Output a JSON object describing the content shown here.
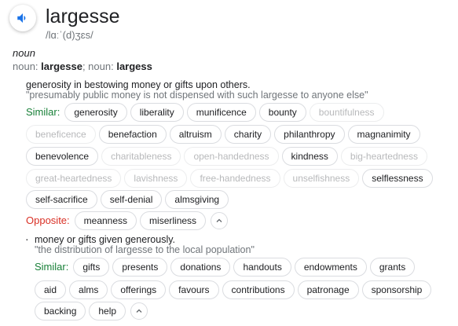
{
  "entry": {
    "word": "largesse",
    "pronunciation": "/lɑːˈ(d)ʒɛs/",
    "part_of_speech": "noun",
    "forms_prefix": "noun:",
    "form1": "largesse",
    "forms_sep": "; noun:",
    "form2": "largess"
  },
  "sense1": {
    "definition": "generosity in bestowing money or gifts upon others.",
    "example": "\"presumably public money is not dispensed with such largesse to anyone else\"",
    "similar_label": "Similar:",
    "opposite_label": "Opposite:",
    "row1": [
      "generosity",
      "liberality",
      "munificence",
      "bounty",
      "bountifulness"
    ],
    "row2": [
      "beneficence",
      "benefaction",
      "altruism",
      "charity",
      "philanthropy",
      "magnanimity"
    ],
    "row3": [
      "benevolence",
      "charitableness",
      "open-handedness",
      "kindness",
      "big-heartedness"
    ],
    "row4": [
      "great-heartedness",
      "lavishness",
      "free-handedness",
      "unselfishness",
      "selflessness"
    ],
    "row5": [
      "self-sacrifice",
      "self-denial",
      "almsgiving"
    ],
    "opposites": [
      "meanness",
      "miserliness"
    ]
  },
  "sense2": {
    "definition": "money or gifts given generously.",
    "example": "\"the distribution of largesse to the local population\"",
    "similar_label": "Similar:",
    "row1": [
      "gifts",
      "presents",
      "donations",
      "handouts",
      "endowments",
      "grants"
    ],
    "row2": [
      "aid",
      "alms",
      "offerings",
      "favours",
      "contributions",
      "patronage",
      "sponsorship"
    ],
    "row3": [
      "backing",
      "help"
    ]
  },
  "icons": {
    "speaker": "speaker-icon",
    "collapse": "chevron-up-icon"
  },
  "colors": {
    "similar": "#188038",
    "opposite": "#d93025",
    "speaker": "#1a73e8"
  }
}
